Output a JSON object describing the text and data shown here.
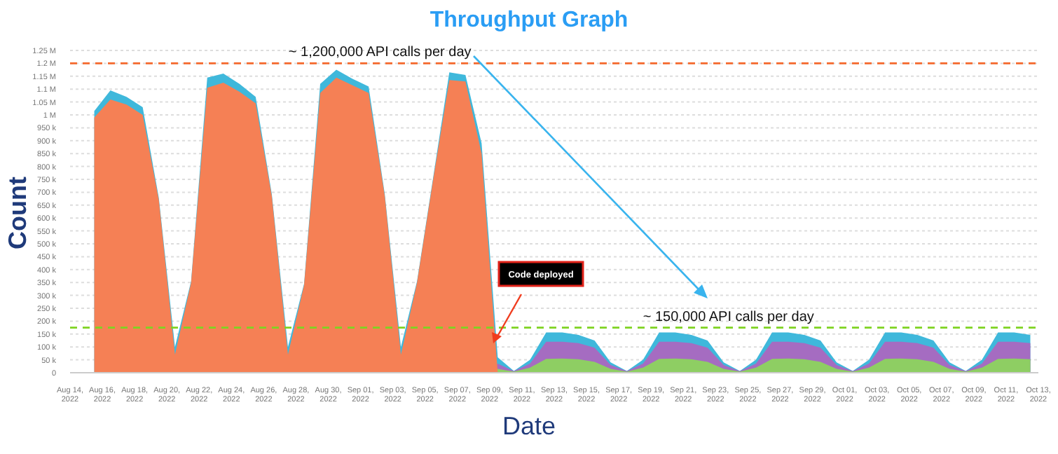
{
  "chart_data": {
    "type": "area",
    "title": "Throughput Graph",
    "xlabel": "Date",
    "ylabel": "Count",
    "grid": "y",
    "legend": false,
    "x": [
      "2022-08-15T12:00",
      "2022-08-16T12:00",
      "2022-08-17T12:00",
      "2022-08-18T12:00",
      "2022-08-19T12:00",
      "2022-08-20T12:00",
      "2022-08-21T12:00",
      "2022-08-22T12:00",
      "2022-08-23T12:00",
      "2022-08-24T12:00",
      "2022-08-25T12:00",
      "2022-08-26T12:00",
      "2022-08-27T12:00",
      "2022-08-28T12:00",
      "2022-08-29T12:00",
      "2022-08-30T12:00",
      "2022-08-31T12:00",
      "2022-09-01T12:00",
      "2022-09-02T12:00",
      "2022-09-03T12:00",
      "2022-09-04T12:00",
      "2022-09-05T12:00",
      "2022-09-06T12:00",
      "2022-09-07T12:00",
      "2022-09-08T12:00",
      "2022-09-09T12:00",
      "2022-09-10T12:00",
      "2022-09-11T12:00",
      "2022-09-12T12:00",
      "2022-09-13T12:00",
      "2022-09-14T12:00",
      "2022-09-15T12:00",
      "2022-09-16T12:00",
      "2022-09-17T12:00",
      "2022-09-18T12:00",
      "2022-09-19T12:00",
      "2022-09-20T12:00",
      "2022-09-21T12:00",
      "2022-09-22T12:00",
      "2022-09-23T12:00",
      "2022-09-24T12:00",
      "2022-09-25T12:00",
      "2022-09-26T12:00",
      "2022-09-27T12:00",
      "2022-09-28T12:00",
      "2022-09-29T12:00",
      "2022-09-30T12:00",
      "2022-10-01T12:00",
      "2022-10-02T12:00",
      "2022-10-03T12:00",
      "2022-10-04T12:00",
      "2022-10-05T12:00",
      "2022-10-06T12:00",
      "2022-10-07T12:00",
      "2022-10-08T12:00",
      "2022-10-09T12:00",
      "2022-10-10T12:00",
      "2022-10-11T12:00",
      "2022-10-12T12:00"
    ],
    "series": [
      {
        "color": "#3fb8db",
        "values": [
          1015000,
          1095000,
          1070000,
          1030000,
          678000,
          100000,
          355000,
          1145000,
          1160000,
          1120000,
          1070000,
          693000,
          100000,
          345000,
          1120000,
          1175000,
          1140000,
          1110000,
          693000,
          100000,
          355000,
          758000,
          1165000,
          1155000,
          890000,
          60000,
          7000,
          50000,
          156000,
          156000,
          147000,
          125000,
          40000,
          7000,
          50000,
          156000,
          156000,
          147000,
          125000,
          40000,
          7000,
          50000,
          156000,
          156000,
          147000,
          125000,
          40000,
          7000,
          50000,
          156000,
          156000,
          147000,
          125000,
          40000,
          7000,
          50000,
          156000,
          156000,
          147000
        ]
      },
      {
        "color": "#a56cc1",
        "values": [
          0,
          0,
          0,
          0,
          0,
          0,
          0,
          0,
          0,
          0,
          0,
          0,
          0,
          0,
          0,
          0,
          0,
          0,
          0,
          0,
          0,
          0,
          0,
          0,
          0,
          35000,
          6000,
          35000,
          120000,
          120000,
          115000,
          97000,
          30000,
          6000,
          35000,
          120000,
          120000,
          115000,
          97000,
          30000,
          6000,
          35000,
          120000,
          120000,
          115000,
          97000,
          30000,
          6000,
          35000,
          120000,
          120000,
          115000,
          97000,
          30000,
          6000,
          35000,
          120000,
          120000,
          115000
        ]
      },
      {
        "color": "#8ece63",
        "values": [
          0,
          0,
          0,
          0,
          0,
          0,
          0,
          0,
          0,
          0,
          0,
          0,
          0,
          0,
          0,
          0,
          0,
          0,
          0,
          0,
          0,
          0,
          0,
          0,
          0,
          15000,
          4000,
          20000,
          54000,
          55000,
          52000,
          42000,
          15000,
          4000,
          20000,
          54000,
          55000,
          52000,
          42000,
          15000,
          4000,
          20000,
          54000,
          55000,
          52000,
          42000,
          15000,
          4000,
          20000,
          54000,
          55000,
          52000,
          42000,
          15000,
          4000,
          20000,
          54000,
          55000,
          52000
        ]
      },
      {
        "color": "#f58055",
        "values": [
          990000,
          1060000,
          1040000,
          1000000,
          670000,
          70000,
          350000,
          1105000,
          1125000,
          1090000,
          1045000,
          685000,
          70000,
          340000,
          1085000,
          1145000,
          1115000,
          1085000,
          685000,
          70000,
          350000,
          750000,
          1135000,
          1130000,
          850000,
          0,
          0,
          0,
          0,
          0,
          0,
          0,
          0,
          0,
          0,
          0,
          0,
          0,
          0,
          0,
          0,
          0,
          0,
          0,
          0,
          0,
          0,
          0,
          0,
          0,
          0,
          0,
          0,
          0,
          0,
          0,
          0,
          0,
          0
        ]
      }
    ],
    "xlim": [
      "2022-08-14",
      "2022-10-13"
    ],
    "xticks": [
      {
        "value": "2022-08-14",
        "label": "Aug 14, 2022"
      },
      {
        "value": "2022-08-16",
        "label": "Aug 16, 2022"
      },
      {
        "value": "2022-08-18",
        "label": "Aug 18, 2022"
      },
      {
        "value": "2022-08-20",
        "label": "Aug 20, 2022"
      },
      {
        "value": "2022-08-22",
        "label": "Aug 22, 2022"
      },
      {
        "value": "2022-08-24",
        "label": "Aug 24, 2022"
      },
      {
        "value": "2022-08-26",
        "label": "Aug 26, 2022"
      },
      {
        "value": "2022-08-28",
        "label": "Aug 28, 2022"
      },
      {
        "value": "2022-08-30",
        "label": "Aug 30, 2022"
      },
      {
        "value": "2022-09-01",
        "label": "Sep 01, 2022"
      },
      {
        "value": "2022-09-03",
        "label": "Sep 03, 2022"
      },
      {
        "value": "2022-09-05",
        "label": "Sep 05, 2022"
      },
      {
        "value": "2022-09-07",
        "label": "Sep 07, 2022"
      },
      {
        "value": "2022-09-09",
        "label": "Sep 09, 2022"
      },
      {
        "value": "2022-09-11",
        "label": "Sep 11, 2022"
      },
      {
        "value": "2022-09-13",
        "label": "Sep 13, 2022"
      },
      {
        "value": "2022-09-15",
        "label": "Sep 15, 2022"
      },
      {
        "value": "2022-09-17",
        "label": "Sep 17, 2022"
      },
      {
        "value": "2022-09-19",
        "label": "Sep 19, 2022"
      },
      {
        "value": "2022-09-21",
        "label": "Sep 21, 2022"
      },
      {
        "value": "2022-09-23",
        "label": "Sep 23, 2022"
      },
      {
        "value": "2022-09-25",
        "label": "Sep 25, 2022"
      },
      {
        "value": "2022-09-27",
        "label": "Sep 27, 2022"
      },
      {
        "value": "2022-09-29",
        "label": "Sep 29, 2022"
      },
      {
        "value": "2022-10-01",
        "label": "Oct 01, 2022"
      },
      {
        "value": "2022-10-03",
        "label": "Oct 03, 2022"
      },
      {
        "value": "2022-10-05",
        "label": "Oct 05, 2022"
      },
      {
        "value": "2022-10-07",
        "label": "Oct 07, 2022"
      },
      {
        "value": "2022-10-09",
        "label": "Oct 09, 2022"
      },
      {
        "value": "2022-10-11",
        "label": "Oct 11, 2022"
      },
      {
        "value": "2022-10-13",
        "label": "Oct 13, 2022"
      }
    ],
    "ylim": [
      0,
      1250000
    ],
    "yticks": [
      0,
      {
        "value": 50000,
        "label": "50 k"
      },
      {
        "value": 100000,
        "label": "100 k"
      },
      {
        "value": 150000,
        "label": "150 k"
      },
      {
        "value": 200000,
        "label": "200 k"
      },
      {
        "value": 250000,
        "label": "250 k"
      },
      {
        "value": 300000,
        "label": "300 k"
      },
      {
        "value": 350000,
        "label": "350 k"
      },
      {
        "value": 400000,
        "label": "400 k"
      },
      {
        "value": 450000,
        "label": "450 k"
      },
      {
        "value": 500000,
        "label": "500 k"
      },
      {
        "value": 550000,
        "label": "550 k"
      },
      {
        "value": 600000,
        "label": "600 k"
      },
      {
        "value": 650000,
        "label": "650 k"
      },
      {
        "value": 700000,
        "label": "700 k"
      },
      {
        "value": 750000,
        "label": "750 k"
      },
      {
        "value": 800000,
        "label": "800 k"
      },
      {
        "value": 850000,
        "label": "850 k"
      },
      {
        "value": 900000,
        "label": "900 k"
      },
      {
        "value": 950000,
        "label": "950 k"
      },
      {
        "value": 1000000,
        "label": "1 M"
      },
      {
        "value": 1050000,
        "label": "1.05 M"
      },
      {
        "value": 1100000,
        "label": "1.1 M"
      },
      {
        "value": 1150000,
        "label": "1.15 M"
      },
      {
        "value": 1200000,
        "label": "1.2 M"
      },
      {
        "value": 1250000,
        "label": "1.25 M"
      }
    ],
    "ref_lines": [
      {
        "axis": "y",
        "value": 1200000,
        "label": "~ 1,200,000 API calls per day",
        "color": "#f5692d",
        "line_style": "dashed"
      },
      {
        "axis": "y",
        "value": 175000,
        "label": "~ 150,000 API calls per day",
        "color": "#7ed321",
        "line_style": "dashed"
      }
    ],
    "annotations": [
      "Code deployed"
    ]
  }
}
